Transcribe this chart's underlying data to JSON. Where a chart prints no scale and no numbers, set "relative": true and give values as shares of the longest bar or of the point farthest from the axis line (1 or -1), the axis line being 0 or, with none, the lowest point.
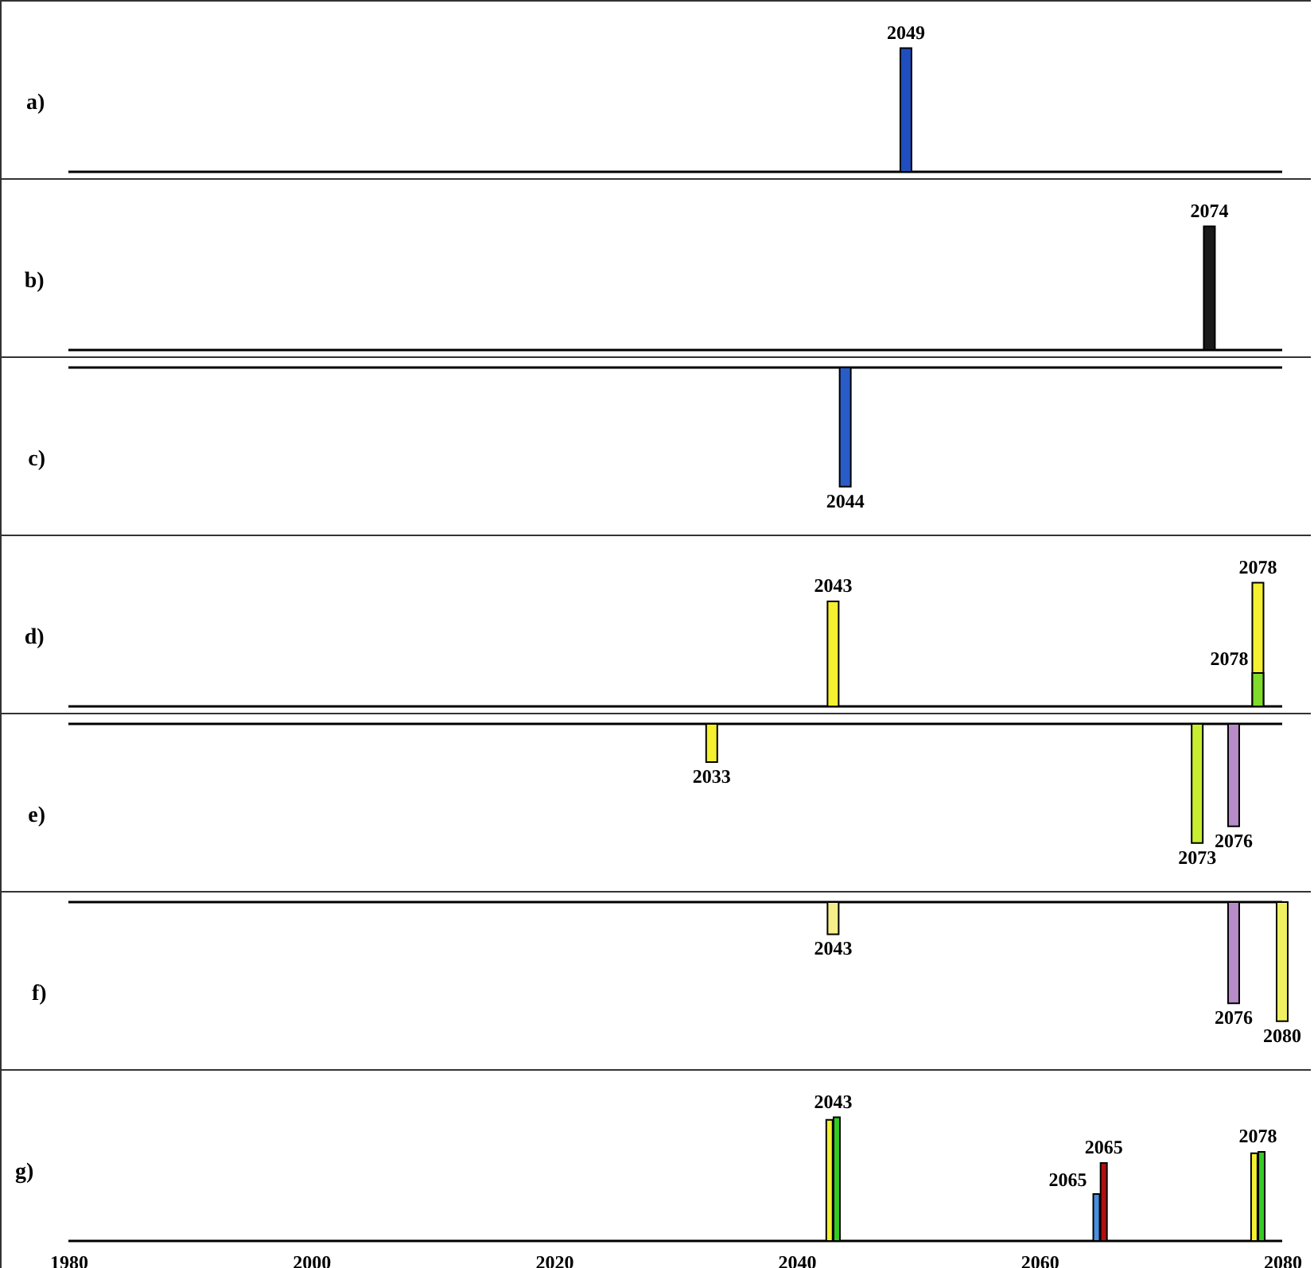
{
  "chart_data": [
    {
      "type": "bar",
      "title": "a)",
      "relative": true,
      "xlim": [
        1980,
        2080
      ],
      "tick_labels": false,
      "series": [
        {
          "color": "#1f4fbf",
          "x": [
            2049
          ],
          "values": [
            1
          ]
        }
      ],
      "annotations": [
        {
          "text": "2049",
          "x": 2049,
          "y": 1
        }
      ]
    },
    {
      "type": "bar",
      "title": "b)",
      "relative": true,
      "xlim": [
        1980,
        2080
      ],
      "tick_labels": false,
      "series": [
        {
          "color": "#1a1a1a",
          "x": [
            2074
          ],
          "values": [
            1
          ]
        }
      ],
      "annotations": [
        {
          "text": "2074",
          "x": 2074,
          "y": 1
        }
      ]
    },
    {
      "type": "bar",
      "title": "c)",
      "relative": true,
      "xlim": [
        1980,
        2080
      ],
      "tick_labels": false,
      "series": [
        {
          "color": "#2a5cc8",
          "x": [
            2044
          ],
          "values": [
            -1
          ]
        }
      ],
      "annotations": [
        {
          "text": "2044",
          "x": 2044,
          "y": -1
        }
      ]
    },
    {
      "type": "bar",
      "title": "d)",
      "relative": true,
      "xlim": [
        1980,
        2080
      ],
      "tick_labels": false,
      "series": [
        {
          "color": "#f5f030",
          "x": [
            2043,
            2078
          ],
          "values": [
            0.85,
            1
          ]
        },
        {
          "color": "#7fdc2a",
          "x": [
            2078
          ],
          "values": [
            0.27
          ]
        }
      ],
      "annotations": [
        {
          "text": "2043",
          "x": 2043,
          "y": 0.85
        },
        {
          "text": "2078",
          "x": 2078,
          "y": 1
        },
        {
          "text": "2078",
          "x": 2078,
          "y": 0.27
        }
      ]
    },
    {
      "type": "bar",
      "title": "e)",
      "relative": true,
      "xlim": [
        1980,
        2080
      ],
      "tick_labels": false,
      "series": [
        {
          "colors": [
            "#f5f030",
            "#c8ee30",
            "#b88cc8"
          ],
          "x": [
            2033,
            2073,
            2076
          ],
          "values": [
            -0.32,
            -1,
            -0.86
          ]
        }
      ],
      "annotations": [
        {
          "text": "2033",
          "x": 2033,
          "y": -0.32
        },
        {
          "text": "2073",
          "x": 2073,
          "y": -1
        },
        {
          "text": "2076",
          "x": 2076,
          "y": -0.86
        }
      ]
    },
    {
      "type": "bar",
      "title": "f)",
      "relative": true,
      "xlim": [
        1980,
        2080
      ],
      "tick_labels": false,
      "series": [
        {
          "colors": [
            "#f5f08a",
            "#b88cc8",
            "#f0f060"
          ],
          "x": [
            2043,
            2076,
            2080
          ],
          "values": [
            -0.27,
            -0.85,
            -1
          ]
        }
      ],
      "annotations": [
        {
          "text": "2043",
          "x": 2043,
          "y": -0.27
        },
        {
          "text": "2076",
          "x": 2076,
          "y": -0.85
        },
        {
          "text": "2080",
          "x": 2080,
          "y": -1
        }
      ]
    },
    {
      "type": "bar",
      "title": "g)",
      "relative": true,
      "xlim": [
        1980,
        2080
      ],
      "xticks": [
        1980,
        2000,
        2020,
        2040,
        2060,
        2080
      ],
      "tick_labels": "x",
      "series": [
        {
          "color": "#f5f030",
          "x": [
            2042.7,
            2077.7
          ],
          "values": [
            0.98,
            0.71
          ]
        },
        {
          "color": "#33cc22",
          "x": [
            2043.3,
            2078.3
          ],
          "values": [
            1,
            0.72
          ]
        },
        {
          "color": "#4a8fe0",
          "x": [
            2064.7
          ],
          "values": [
            0.38
          ]
        },
        {
          "color": "#b01010",
          "x": [
            2065.3
          ],
          "values": [
            0.63
          ]
        }
      ],
      "annotations": [
        {
          "text": "2043",
          "x": 2043,
          "y": 1
        },
        {
          "text": "2065",
          "x": 2064.7,
          "y": 0.38
        },
        {
          "text": "2065",
          "x": 2065.3,
          "y": 0.63
        },
        {
          "text": "2078",
          "x": 2078,
          "y": 0.72
        }
      ]
    }
  ]
}
